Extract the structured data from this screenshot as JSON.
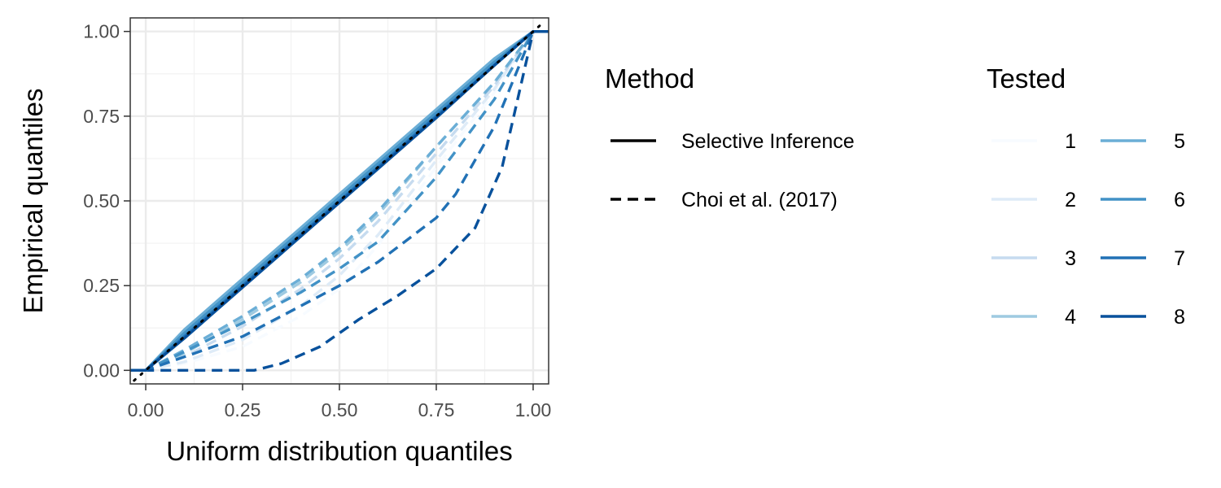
{
  "chart_data": {
    "type": "line",
    "xlabel": "Uniform distribution quantiles",
    "ylabel": "Empirical quantiles",
    "xlim": [
      -0.04,
      1.04
    ],
    "ylim": [
      -0.04,
      1.04
    ],
    "x_ticks": [
      0,
      0.25,
      0.5,
      0.75,
      1
    ],
    "y_ticks": [
      0,
      0.25,
      0.5,
      0.75,
      1
    ],
    "x_tick_labels": [
      "0.00",
      "0.25",
      "0.50",
      "0.75",
      "1.00"
    ],
    "y_tick_labels": [
      "0.00",
      "0.25",
      "0.50",
      "0.75",
      "1.00"
    ],
    "grid": true,
    "reference_line": {
      "style": "dotted",
      "color": "#000000",
      "x": [
        -0.03,
        1.03
      ],
      "y": [
        -0.03,
        1.03
      ]
    },
    "legend_method": {
      "title": "Method",
      "placement": "right",
      "entries": [
        {
          "label": "Selective Inference",
          "dash": "solid"
        },
        {
          "label": "Choi et al. (2017)",
          "dash": "dashed"
        }
      ]
    },
    "legend_tested": {
      "title": "Tested",
      "placement": "right",
      "entries": [
        {
          "label": "1",
          "color": "#F7FBFF"
        },
        {
          "label": "2",
          "color": "#DEEBF7"
        },
        {
          "label": "3",
          "color": "#C6DBEF"
        },
        {
          "label": "4",
          "color": "#9ECAE1"
        },
        {
          "label": "5",
          "color": "#6BAED6"
        },
        {
          "label": "6",
          "color": "#4292C6"
        },
        {
          "label": "7",
          "color": "#2171B5"
        },
        {
          "label": "8",
          "color": "#08519C"
        }
      ]
    },
    "series": [
      {
        "method": "Selective Inference",
        "tested": "1",
        "x": [
          -0.05,
          0,
          0.1,
          0.25,
          0.5,
          0.75,
          0.9,
          1,
          1.05
        ],
        "y": [
          0,
          0,
          0.1,
          0.25,
          0.5,
          0.75,
          0.9,
          1,
          1
        ]
      },
      {
        "method": "Selective Inference",
        "tested": "2",
        "x": [
          -0.05,
          0,
          0.1,
          0.25,
          0.5,
          0.75,
          0.9,
          1,
          1.05
        ],
        "y": [
          0,
          0,
          0.1,
          0.25,
          0.5,
          0.75,
          0.9,
          1,
          1
        ]
      },
      {
        "method": "Selective Inference",
        "tested": "3",
        "x": [
          -0.05,
          0,
          0.1,
          0.25,
          0.5,
          0.75,
          0.9,
          1,
          1.05
        ],
        "y": [
          0,
          0,
          0.105,
          0.255,
          0.505,
          0.755,
          0.905,
          1,
          1
        ]
      },
      {
        "method": "Selective Inference",
        "tested": "4",
        "x": [
          -0.05,
          0,
          0.1,
          0.25,
          0.5,
          0.75,
          0.9,
          1,
          1.05
        ],
        "y": [
          0,
          0,
          0.11,
          0.26,
          0.51,
          0.76,
          0.91,
          1,
          1
        ]
      },
      {
        "method": "Selective Inference",
        "tested": "5",
        "x": [
          -0.05,
          0,
          0.1,
          0.25,
          0.5,
          0.75,
          0.9,
          1,
          1.05
        ],
        "y": [
          0,
          0,
          0.12,
          0.27,
          0.52,
          0.77,
          0.92,
          1,
          1
        ]
      },
      {
        "method": "Selective Inference",
        "tested": "6",
        "x": [
          -0.05,
          0,
          0.1,
          0.25,
          0.5,
          0.75,
          0.9,
          1,
          1.05
        ],
        "y": [
          0,
          0,
          0.11,
          0.26,
          0.51,
          0.76,
          0.91,
          1,
          1
        ]
      },
      {
        "method": "Selective Inference",
        "tested": "7",
        "x": [
          -0.05,
          0,
          0.1,
          0.25,
          0.5,
          0.75,
          0.9,
          1,
          1.05
        ],
        "y": [
          0,
          0,
          0.1,
          0.25,
          0.5,
          0.75,
          0.9,
          1,
          1
        ]
      },
      {
        "method": "Selective Inference",
        "tested": "8",
        "x": [
          -0.05,
          0,
          0.1,
          0.25,
          0.5,
          0.75,
          0.9,
          1,
          1.05
        ],
        "y": [
          0,
          0,
          0.095,
          0.245,
          0.495,
          0.745,
          0.9,
          1,
          1
        ]
      },
      {
        "method": "Choi et al. (2017)",
        "tested": "1",
        "x": [
          -0.05,
          0,
          0.1,
          0.25,
          0.4,
          0.5,
          0.6,
          0.75,
          0.9,
          1,
          1.05
        ],
        "y": [
          0,
          0,
          0.02,
          0.07,
          0.16,
          0.24,
          0.37,
          0.6,
          0.82,
          1,
          1
        ]
      },
      {
        "method": "Choi et al. (2017)",
        "tested": "2",
        "x": [
          -0.05,
          0,
          0.1,
          0.25,
          0.4,
          0.5,
          0.6,
          0.75,
          0.9,
          1,
          1.05
        ],
        "y": [
          0,
          0,
          0.025,
          0.09,
          0.19,
          0.28,
          0.4,
          0.62,
          0.83,
          1,
          1
        ]
      },
      {
        "method": "Choi et al. (2017)",
        "tested": "3",
        "x": [
          -0.05,
          0,
          0.1,
          0.25,
          0.4,
          0.5,
          0.6,
          0.75,
          0.9,
          1,
          1.05
        ],
        "y": [
          0,
          0,
          0.04,
          0.13,
          0.24,
          0.33,
          0.44,
          0.64,
          0.84,
          1,
          1
        ]
      },
      {
        "method": "Choi et al. (2017)",
        "tested": "4",
        "x": [
          -0.05,
          0,
          0.1,
          0.25,
          0.4,
          0.5,
          0.6,
          0.75,
          0.9,
          1,
          1.05
        ],
        "y": [
          0,
          0,
          0.05,
          0.15,
          0.26,
          0.35,
          0.46,
          0.66,
          0.85,
          1,
          1
        ]
      },
      {
        "method": "Choi et al. (2017)",
        "tested": "5",
        "x": [
          -0.05,
          0,
          0.1,
          0.25,
          0.4,
          0.5,
          0.6,
          0.75,
          0.9,
          1,
          1.05
        ],
        "y": [
          0,
          0,
          0.06,
          0.16,
          0.27,
          0.36,
          0.47,
          0.66,
          0.85,
          1,
          1
        ]
      },
      {
        "method": "Choi et al. (2017)",
        "tested": "6",
        "x": [
          -0.05,
          0,
          0.1,
          0.25,
          0.4,
          0.5,
          0.6,
          0.75,
          0.9,
          1,
          1.05
        ],
        "y": [
          0,
          0,
          0.055,
          0.14,
          0.23,
          0.3,
          0.38,
          0.57,
          0.8,
          1,
          1
        ]
      },
      {
        "method": "Choi et al. (2017)",
        "tested": "7",
        "x": [
          -0.05,
          0,
          0.1,
          0.25,
          0.4,
          0.5,
          0.6,
          0.75,
          0.8,
          0.9,
          1,
          1.05
        ],
        "y": [
          0,
          0,
          0.04,
          0.1,
          0.19,
          0.25,
          0.32,
          0.45,
          0.52,
          0.72,
          1,
          1
        ]
      },
      {
        "method": "Choi et al. (2017)",
        "tested": "8",
        "x": [
          -0.05,
          0,
          0.15,
          0.28,
          0.35,
          0.45,
          0.55,
          0.65,
          0.75,
          0.85,
          0.92,
          0.97,
          1,
          1.05
        ],
        "y": [
          0,
          0,
          0,
          0,
          0.02,
          0.07,
          0.15,
          0.22,
          0.3,
          0.42,
          0.6,
          0.85,
          1,
          1
        ]
      }
    ]
  }
}
